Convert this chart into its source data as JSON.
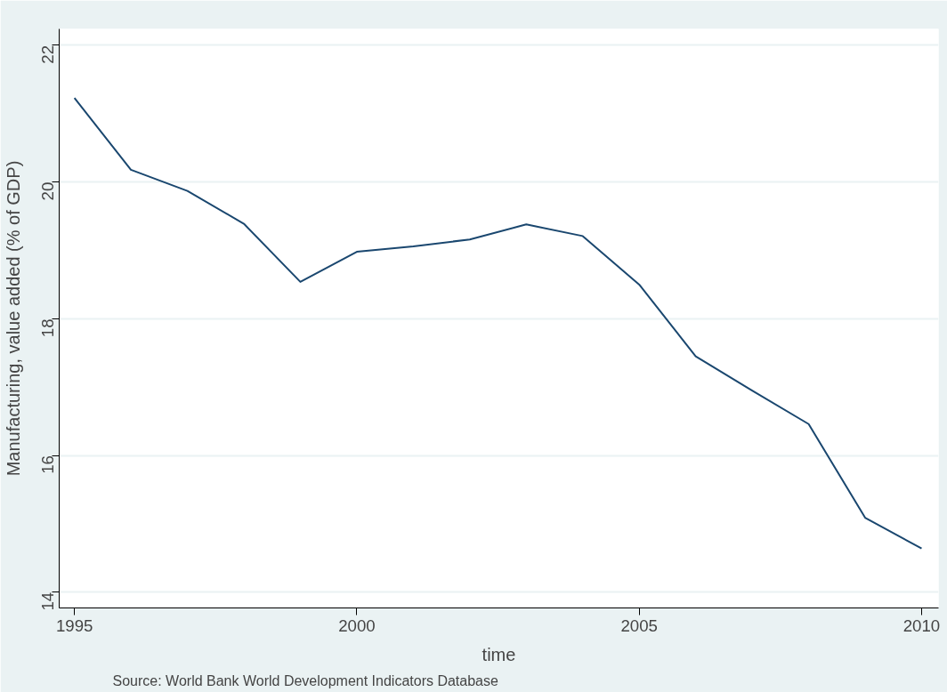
{
  "chart_data": {
    "type": "line",
    "xlabel": "time",
    "ylabel": "Manufacturing, value added (% of GDP)",
    "annotations": [
      "Source: World Bank World Development Indicators Database"
    ],
    "x": [
      1995,
      1996,
      1997,
      1998,
      1999,
      2000,
      2001,
      2002,
      2003,
      2004,
      2005,
      2006,
      2007,
      2008,
      2009,
      2010
    ],
    "series": [
      {
        "color": "#1a476f",
        "values": [
          21.23,
          20.18,
          19.87,
          19.39,
          18.54,
          18.98,
          19.06,
          19.16,
          19.38,
          19.21,
          18.5,
          17.45,
          16.95,
          16.46,
          15.09,
          14.64
        ]
      }
    ],
    "xlim": [
      1994.73,
      2010.3
    ],
    "ylim": [
      13.77,
      22.24
    ],
    "xticks": [
      1995,
      2000,
      2005,
      2010
    ],
    "yticks": [
      14,
      16,
      18,
      20,
      22
    ],
    "grid": "y",
    "marker": "none",
    "line_style": "solid"
  }
}
